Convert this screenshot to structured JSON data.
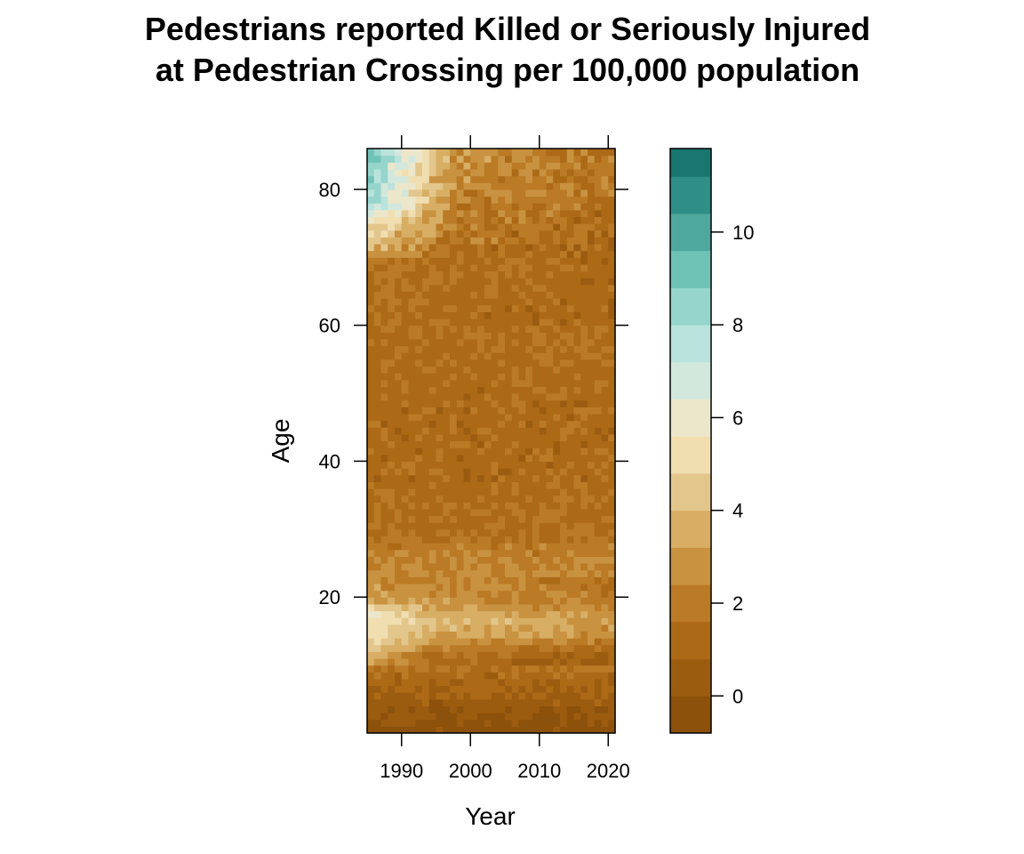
{
  "chart_data": {
    "type": "heatmap",
    "title": "Pedestrians reported Killed or Seriously Injured\nat Pedestrian Crossing per 100,000 population",
    "xlabel": "Year",
    "ylabel": "Age",
    "x_range": [
      1985,
      2021
    ],
    "y_range": [
      0,
      86
    ],
    "x_ticks": [
      1990,
      2000,
      2010,
      2020
    ],
    "y_ticks": [
      20,
      40,
      60,
      80
    ],
    "colorbar": {
      "range": [
        -0.8,
        11.8
      ],
      "ticks": [
        0,
        2,
        4,
        6,
        8,
        10
      ],
      "breaks": [
        -0.8,
        0,
        0.8,
        1.6,
        2.4,
        3.2,
        4.0,
        4.8,
        5.6,
        6.4,
        7.2,
        8.0,
        8.8,
        9.6,
        10.4,
        11.2,
        11.8
      ],
      "colors": [
        "#8c510a",
        "#9c5c10",
        "#ac6a17",
        "#bb7a25",
        "#c99240",
        "#d7ae64",
        "#e3c68c",
        "#f0deb0",
        "#ece6cb",
        "#d3e8dc",
        "#b9e3dc",
        "#95d5cb",
        "#6fc3b6",
        "#4ea89e",
        "#2f8e86",
        "#1a776f",
        "#04665e"
      ]
    },
    "profile_by_age": [
      {
        "age": 0,
        "value": -0.4
      },
      {
        "age": 3,
        "value": 0.2
      },
      {
        "age": 7,
        "value": 1.0
      },
      {
        "age": 11,
        "value": 2.0
      },
      {
        "age": 14,
        "value": 3.8
      },
      {
        "age": 16,
        "value": 4.2
      },
      {
        "age": 19,
        "value": 3.2
      },
      {
        "age": 25,
        "value": 2.3
      },
      {
        "age": 30,
        "value": 1.5
      },
      {
        "age": 40,
        "value": 1.2
      },
      {
        "age": 50,
        "value": 1.3
      },
      {
        "age": 60,
        "value": 1.4
      },
      {
        "age": 65,
        "value": 1.6
      },
      {
        "age": 70,
        "value": 1.9
      },
      {
        "age": 75,
        "value": 2.4
      },
      {
        "age": 80,
        "value": 2.9
      },
      {
        "age": 85,
        "value": 3.4
      }
    ],
    "early_years_elderly_peak": {
      "years": [
        1985,
        1993
      ],
      "ages": [
        74,
        86
      ],
      "value": 9.0
    },
    "early_years_child_peak": {
      "years": [
        1985,
        1992
      ],
      "ages": [
        13,
        16
      ],
      "value": 5.5
    }
  }
}
